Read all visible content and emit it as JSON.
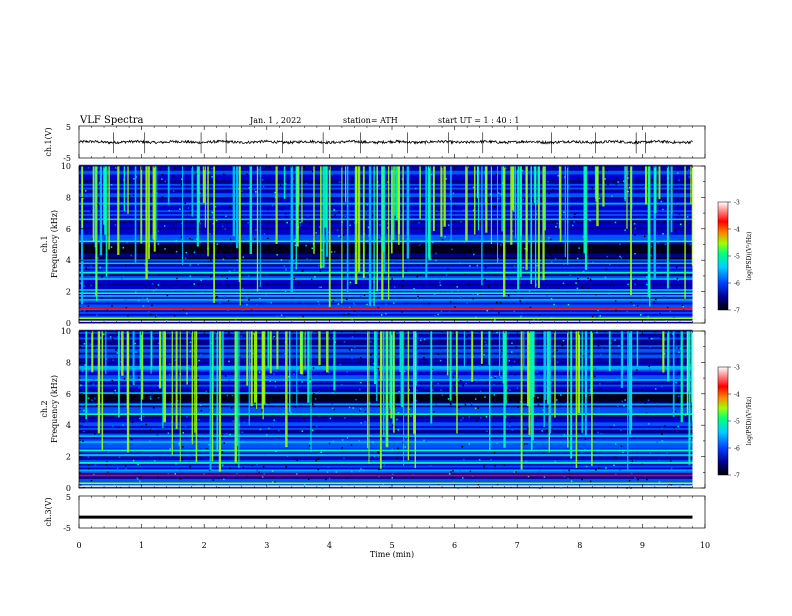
{
  "header": {
    "title": "VLF  Spectra",
    "date": "Jan.  1  , 2022",
    "station": "station= ATH",
    "start": "start  UT  =   1  : 40 : 1"
  },
  "chart_data": [
    {
      "type": "line",
      "panel": "ch1-waveform",
      "ylabel": "ch.1(V)",
      "ylim": [
        -5,
        5
      ],
      "yticks": [
        "5",
        "-5"
      ],
      "x_range_min": [
        0,
        9.8
      ],
      "baseline_v": 0.0,
      "typical_amplitude_v": 0.8,
      "spike_times_min": [
        0.55,
        1.05,
        1.95,
        2.35,
        3.25,
        3.9,
        4.5,
        5.25,
        5.9,
        6.45,
        7.55,
        8.25,
        8.9,
        9.05
      ]
    },
    {
      "type": "heatmap",
      "panel": "ch1-spectrogram",
      "ylabel": "ch.1\nFrequency (kHz)",
      "ylim": [
        0,
        10
      ],
      "yticks": [
        "10",
        "8",
        "6",
        "4",
        "2",
        "0"
      ],
      "xlim": [
        0,
        9.8
      ],
      "colorbar": {
        "label": "log(PSD)(V²/Hz)",
        "range": [
          -7,
          -3
        ],
        "ticks": [
          "-3",
          "-4",
          "-5",
          "-6",
          "-7"
        ]
      },
      "bright_bands_khz": [
        0.9,
        1.9,
        2.1,
        3.2,
        3.8,
        5.2,
        6.6
      ],
      "dark_band_khz": [
        4.0,
        5.0
      ],
      "colors": [
        "#000000",
        "#000080",
        "#0000d0",
        "#0060ff",
        "#00c8ff",
        "#00ffb0",
        "#a0ff00",
        "#ff0000",
        "#ffffff"
      ]
    },
    {
      "type": "heatmap",
      "panel": "ch2-spectrogram",
      "ylabel": "ch.2\nFrequency (kHz)",
      "ylim": [
        0,
        10
      ],
      "yticks": [
        "10",
        "8",
        "6",
        "4",
        "2",
        "0"
      ],
      "xlim": [
        0,
        9.8
      ],
      "colorbar": {
        "label": "log(PSD)(V²/Hz)",
        "range": [
          -7,
          -3
        ],
        "ticks": [
          "-3",
          "-4",
          "-5",
          "-6",
          "-7"
        ]
      },
      "bright_bands_khz": [
        0.8,
        1.6,
        2.1,
        2.4,
        3.3,
        4.7
      ],
      "dark_band_khz": [
        5.3,
        6.0
      ],
      "colors": [
        "#000000",
        "#000080",
        "#0000d0",
        "#0060ff",
        "#00c8ff",
        "#00ffb0",
        "#a0ff00",
        "#ff0000",
        "#ffffff"
      ]
    },
    {
      "type": "line",
      "panel": "ch3-waveform",
      "ylabel": "ch.3(V)",
      "ylim": [
        -5,
        5
      ],
      "yticks": [
        "5",
        "-5"
      ],
      "x_range_min": [
        0,
        9.8
      ],
      "baseline_v": -1.6
    }
  ],
  "xaxis": {
    "label": "Time  (min)",
    "range": [
      0,
      10
    ],
    "ticks": [
      "0",
      "1",
      "2",
      "3",
      "4",
      "5",
      "6",
      "7",
      "8",
      "9",
      "10"
    ]
  }
}
